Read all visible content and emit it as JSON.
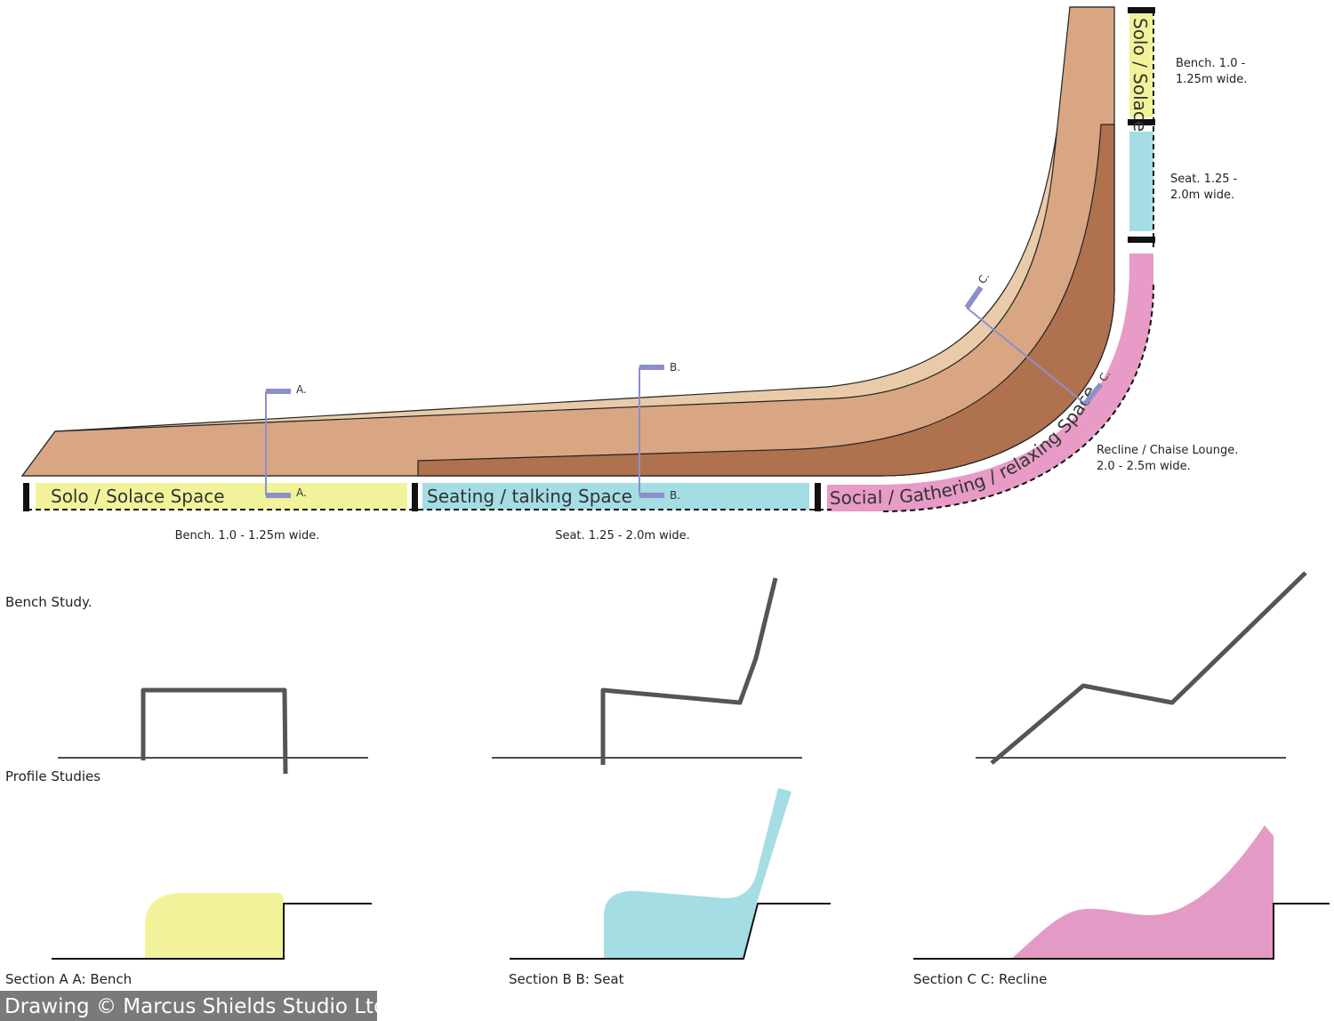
{
  "plan": {
    "zones": [
      "Solo / Solace Space",
      "Seating / talking Space",
      "Social / Gathering / relaxing Space",
      "Solo / Solace"
    ],
    "notes": {
      "bench_bottom": "Bench. 1.0 - 1.25m wide.",
      "seat_bottom": "Seat. 1.25 - 2.0m wide.",
      "bench_right": [
        "Bench. 1.0 -",
        "1.25m wide."
      ],
      "seat_right": [
        "Seat. 1.25 -",
        "2.0m wide."
      ],
      "recline_right": [
        "Recline / Chaise Lounge.",
        "2.0 - 2.5m wide."
      ]
    },
    "section_marks": {
      "a": [
        "A.",
        "A."
      ],
      "b": [
        "B.",
        "B."
      ],
      "c": [
        "C.",
        "C."
      ]
    }
  },
  "studies": {
    "bench_title": "Bench Study.",
    "profile_title": "Profile Studies"
  },
  "sections": [
    "Section A A: Bench",
    "Section B B: Seat",
    "Section C C: Recline"
  ],
  "credit": "Drawing © Marcus Shields Studio Ltd."
}
